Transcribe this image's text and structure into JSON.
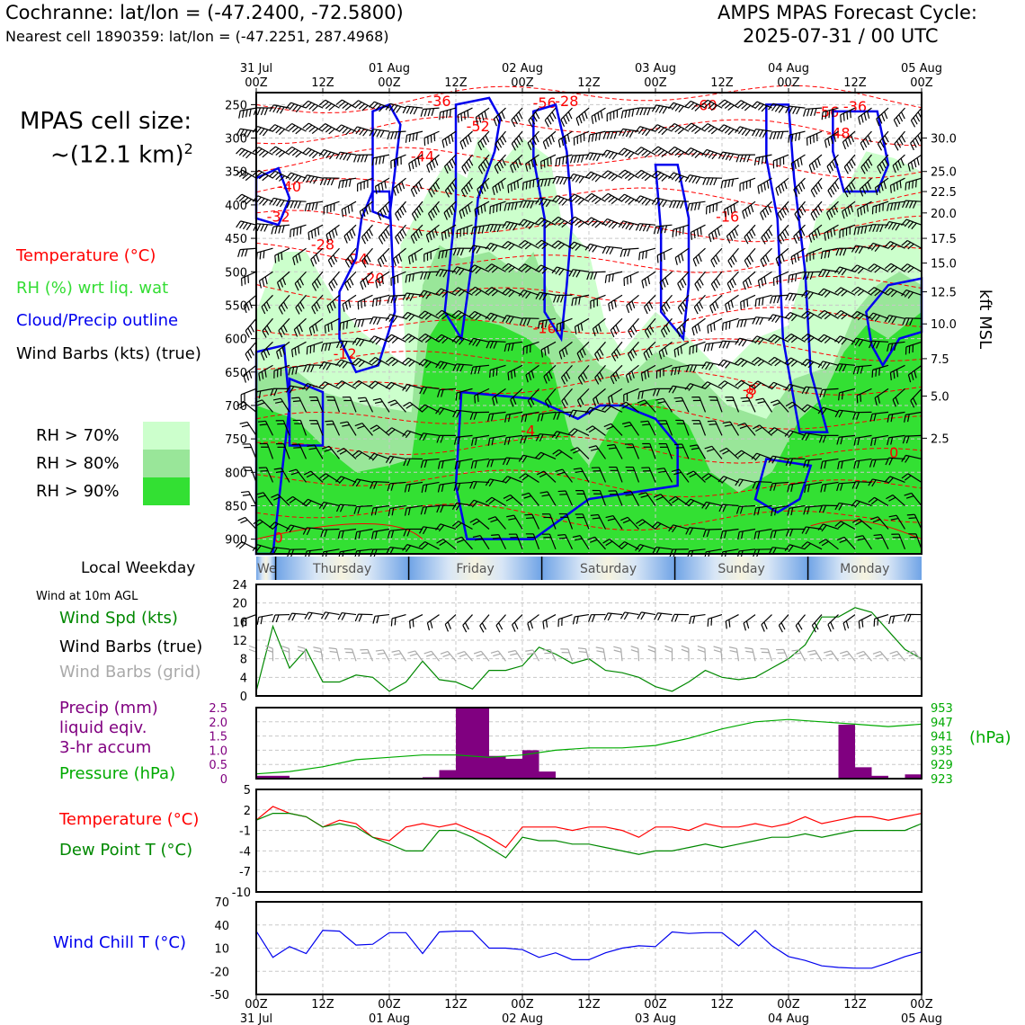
{
  "header": {
    "location": "Cochranne: lat/lon = (-47.2400, -72.5800)",
    "nearest_cell": "Nearest cell 1890359: lat/lon = (-47.2251, 287.4968)",
    "cycle_title": "AMPS MPAS Forecast Cycle:",
    "cycle_time": "2025-07-31 / 00 UTC"
  },
  "cell_size": {
    "line1": "MPAS cell size:",
    "line2": "~(12.1 km)",
    "sup": "2"
  },
  "legend_upper": {
    "temperature": "Temperature (°C)",
    "rh": "RH (%) wrt liq. wat",
    "cloud": "Cloud/Precip outline",
    "barbs": "Wind Barbs (kts) (true)"
  },
  "rh_legend": [
    {
      "label": "RH > 70%",
      "color": "#ccffcc"
    },
    {
      "label": "RH > 80%",
      "color": "#99e699"
    },
    {
      "label": "RH > 90%",
      "color": "#33e033"
    }
  ],
  "colors": {
    "temperature": "#ff0000",
    "rh_text": "#33dd33",
    "cloud": "#0000ee",
    "dewpoint": "#008800",
    "windspd": "#008800",
    "precip": "#800080",
    "pressure": "#00aa00",
    "windchill": "#0000ee",
    "gridbarbs": "#aaaaaa"
  },
  "top_time_axis": [
    {
      "l1": "31 Jul",
      "l2": "00Z"
    },
    {
      "l1": "",
      "l2": "12Z"
    },
    {
      "l1": "01 Aug",
      "l2": "00Z"
    },
    {
      "l1": "",
      "l2": "12Z"
    },
    {
      "l1": "02 Aug",
      "l2": "00Z"
    },
    {
      "l1": "",
      "l2": "12Z"
    },
    {
      "l1": "03 Aug",
      "l2": "00Z"
    },
    {
      "l1": "",
      "l2": "12Z"
    },
    {
      "l1": "04 Aug",
      "l2": "00Z"
    },
    {
      "l1": "",
      "l2": "12Z"
    },
    {
      "l1": "05 Aug",
      "l2": "00Z"
    }
  ],
  "bottom_time_axis": [
    {
      "l1": "00Z",
      "l2": "31 Jul"
    },
    {
      "l1": "12Z",
      "l2": ""
    },
    {
      "l1": "00Z",
      "l2": "01 Aug"
    },
    {
      "l1": "12Z",
      "l2": ""
    },
    {
      "l1": "00Z",
      "l2": "02 Aug"
    },
    {
      "l1": "12Z",
      "l2": ""
    },
    {
      "l1": "00Z",
      "l2": "03 Aug"
    },
    {
      "l1": "12Z",
      "l2": ""
    },
    {
      "l1": "00Z",
      "l2": "04 Aug"
    },
    {
      "l1": "12Z",
      "l2": ""
    },
    {
      "l1": "00Z",
      "l2": "05 Aug"
    }
  ],
  "weekday_strip": {
    "label": "Local Weekday",
    "days": [
      "Wednesday",
      "Thursday",
      "Friday",
      "Saturday",
      "Sunday",
      "Monday"
    ]
  },
  "chart_data": [
    {
      "type": "heatmap",
      "name": "upper-cross-section",
      "y_left_ticks": [
        250,
        300,
        350,
        400,
        450,
        500,
        550,
        600,
        650,
        700,
        750,
        800,
        850,
        900
      ],
      "y_right_label": "kft MSL",
      "y_right_ticks": [
        {
          "label": "30.0",
          "p": 300
        },
        {
          "label": "25.0",
          "p": 350
        },
        {
          "label": "22.5",
          "p": 380
        },
        {
          "label": "20.0",
          "p": 412
        },
        {
          "label": "17.5",
          "p": 450
        },
        {
          "label": "15.0",
          "p": 487
        },
        {
          "label": "12.5",
          "p": 530
        },
        {
          "label": "10.0",
          "p": 578
        },
        {
          "label": "7.5",
          "p": 630
        },
        {
          "label": "5.0",
          "p": 686
        },
        {
          "label": "2.5",
          "p": 749
        }
      ],
      "temperature_labels": [
        "-56",
        "-52",
        "-60",
        "-56",
        "-48",
        "-44",
        "-40",
        "-36",
        "-32",
        "-28",
        "-24",
        "-20",
        "-16",
        "-12",
        "-8",
        "-4",
        "0",
        "-36",
        "-16",
        "8",
        "0",
        "-28"
      ],
      "barb_note": "Wind Barbs (kts) (true)"
    },
    {
      "type": "line",
      "name": "wind-10m",
      "title": "Wind at 10m AGL",
      "ylabel": "Wind Spd (kts)",
      "barbs_true_label": "Wind Barbs (true)",
      "barbs_grid_label": "Wind Barbs (grid)",
      "ylim": [
        0,
        24
      ],
      "yticks": [
        0,
        4,
        8,
        12,
        16,
        20,
        24
      ],
      "x_hours": [
        0,
        3,
        6,
        9,
        12,
        15,
        18,
        21,
        24,
        27,
        30,
        33,
        36,
        39,
        42,
        45,
        48,
        51,
        54,
        57,
        60,
        63,
        66,
        69,
        72,
        75,
        78,
        81,
        84,
        87,
        90,
        93,
        96,
        99,
        102,
        105,
        108,
        111,
        114,
        117,
        120
      ],
      "values": [
        1,
        15,
        6,
        10,
        3,
        3,
        4.5,
        4,
        1,
        3,
        7.5,
        3.5,
        3,
        1.5,
        5.5,
        5.5,
        6.5,
        10.5,
        9,
        7,
        8,
        5.5,
        5,
        4,
        2,
        1,
        3,
        5.5,
        4,
        3.5,
        4,
        6,
        8,
        11,
        17,
        17,
        19,
        18,
        14,
        10,
        8
      ]
    },
    {
      "type": "bar",
      "name": "precip-pressure",
      "ylabel_left": "Precip (mm) liquid eqiv. 3-hr accum",
      "ylabel_right": "Pressure (hPa)",
      "right_unit": "(hPa)",
      "ylim_precip": [
        0,
        2.5
      ],
      "yticks_precip": [
        "0",
        "0.5",
        "1.0",
        "1.5",
        "2.0",
        "2.5"
      ],
      "ylim_pressure": [
        923,
        953
      ],
      "yticks_pressure": [
        "923",
        "929",
        "935",
        "941",
        "947",
        "953"
      ],
      "precip_hours": [
        1.5,
        4.5,
        31.5,
        34.5,
        37.5,
        40.5,
        43.5,
        46.5,
        49.5,
        52.5,
        106.5,
        109.5,
        112.5,
        118.5
      ],
      "precip_values": [
        0.1,
        0.1,
        0.05,
        0.3,
        2.5,
        2.5,
        0.8,
        0.7,
        1.0,
        0.25,
        1.9,
        0.4,
        0.1,
        0.15
      ],
      "pressure_hours": [
        0,
        6,
        12,
        18,
        24,
        30,
        36,
        42,
        48,
        54,
        60,
        66,
        72,
        78,
        84,
        90,
        96,
        102,
        108,
        114,
        120
      ],
      "pressure_values": [
        925,
        926,
        928,
        931,
        932,
        933,
        933,
        932,
        933,
        935,
        936,
        936,
        937,
        940,
        944,
        947,
        948,
        947,
        946,
        945,
        946
      ]
    },
    {
      "type": "line",
      "name": "temp-dewpoint",
      "series": [
        {
          "name": "Temperature (°C)",
          "values": [
            0.5,
            2.5,
            1.5,
            1,
            -0.5,
            0.5,
            0,
            -2,
            -2.5,
            -0.5,
            0,
            -0.5,
            0,
            -1,
            -2,
            -3.5,
            -0.5,
            -0.5,
            -0.5,
            -1,
            -0.5,
            -0.5,
            -1,
            -2,
            -0.5,
            -0.5,
            -1,
            0,
            -0.5,
            -0.5,
            0,
            -0.5,
            0,
            1,
            0,
            0.5,
            1,
            1,
            0.5,
            1,
            1.5
          ]
        },
        {
          "name": "Dew Point T (°C)",
          "values": [
            0.5,
            1.5,
            1.5,
            1,
            -0.5,
            0,
            -0.5,
            -2,
            -3,
            -4,
            -4,
            -1,
            -1,
            -2,
            -3.5,
            -5,
            -2,
            -2.5,
            -2.5,
            -3,
            -3,
            -3.5,
            -4,
            -4.5,
            -4,
            -4,
            -3.5,
            -3,
            -3.5,
            -3,
            -2.5,
            -2,
            -2,
            -1.5,
            -2,
            -1.5,
            -1,
            -1,
            -1,
            -1,
            0
          ]
        }
      ],
      "x_hours": [
        0,
        3,
        6,
        9,
        12,
        15,
        18,
        21,
        24,
        27,
        30,
        33,
        36,
        39,
        42,
        45,
        48,
        51,
        54,
        57,
        60,
        63,
        66,
        69,
        72,
        75,
        78,
        81,
        84,
        87,
        90,
        93,
        96,
        99,
        102,
        105,
        108,
        111,
        114,
        117,
        120
      ],
      "ylim": [
        -10,
        5
      ],
      "yticks": [
        5,
        2,
        -1,
        -4,
        -7,
        -10
      ]
    },
    {
      "type": "line",
      "name": "wind-chill",
      "ylabel": "Wind Chill T (°C)",
      "ylim": [
        -50,
        70
      ],
      "yticks": [
        70,
        40,
        10,
        -20,
        -50
      ],
      "x_hours": [
        0,
        3,
        6,
        9,
        12,
        15,
        18,
        21,
        24,
        27,
        30,
        33,
        36,
        39,
        42,
        45,
        48,
        51,
        54,
        57,
        60,
        63,
        66,
        69,
        72,
        75,
        78,
        81,
        84,
        87,
        90,
        93,
        96,
        99,
        102,
        105,
        108,
        111,
        114,
        117,
        120
      ],
      "values": [
        32,
        -2,
        12,
        3,
        33,
        32,
        14,
        15,
        30,
        30,
        3,
        31,
        32,
        32,
        10,
        10,
        8,
        -2,
        4,
        -5,
        -5,
        4,
        10,
        13,
        12,
        31,
        29,
        30,
        30,
        13,
        33,
        13,
        -1,
        -6,
        -13,
        -15,
        -16,
        -16,
        -9,
        -1,
        5
      ]
    }
  ]
}
